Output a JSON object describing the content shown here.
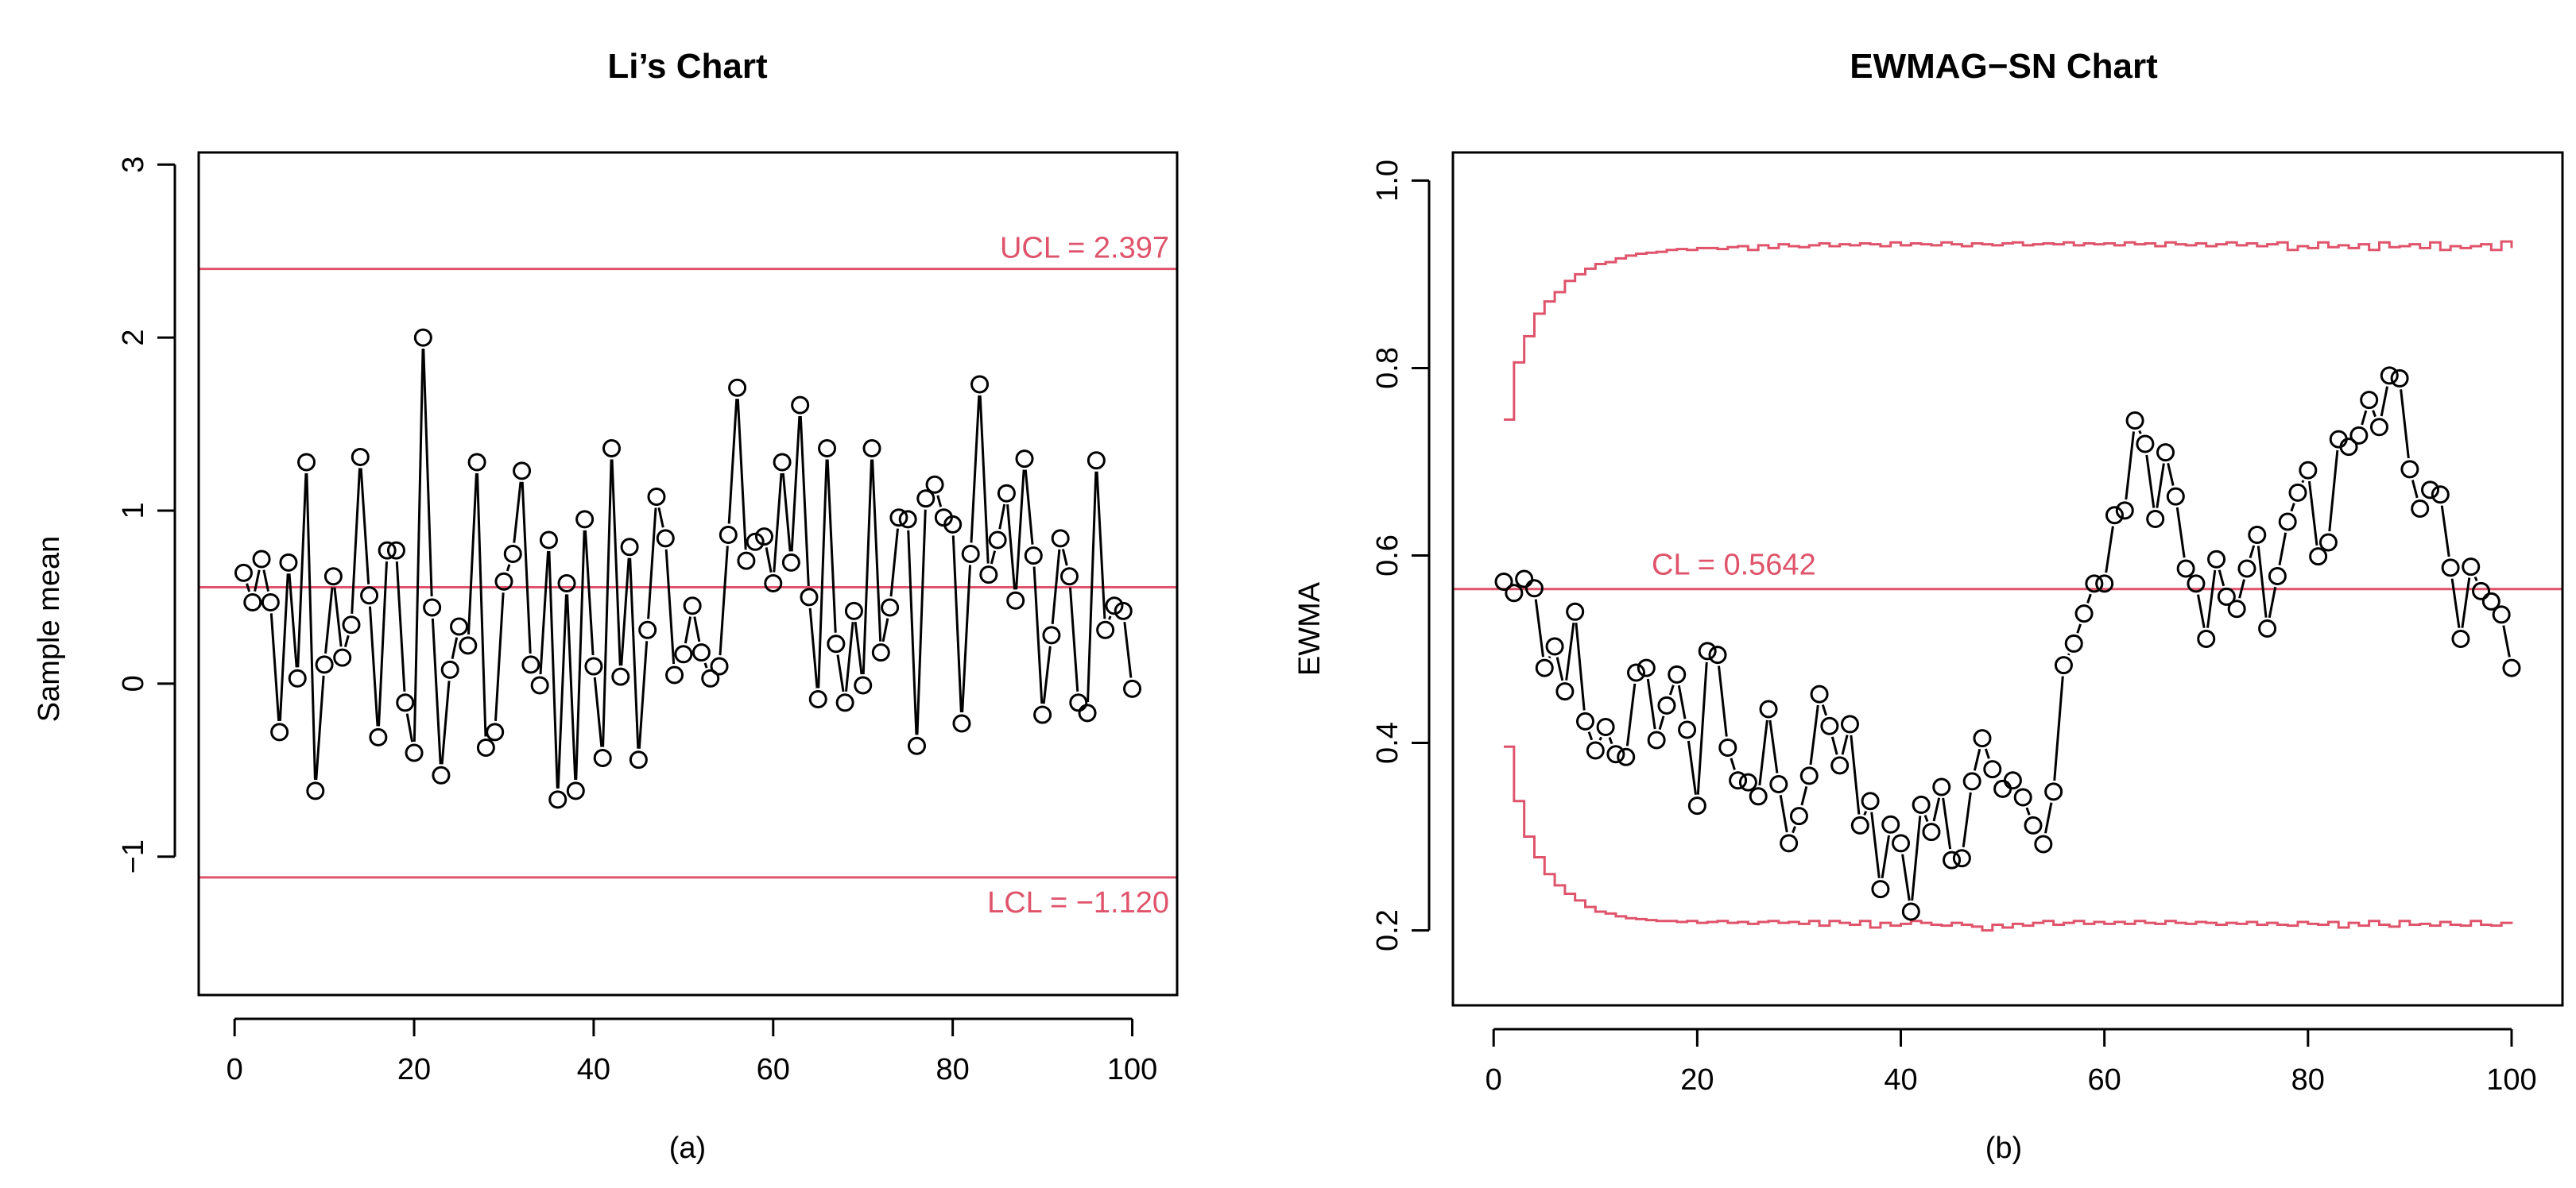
{
  "colors": {
    "limit": "#DF536B",
    "series": "#000000"
  },
  "chart_data": [
    {
      "type": "line",
      "title": "Li’s Chart",
      "caption": "(a)",
      "xlabel": "",
      "ylabel": "Sample mean",
      "xlim": [
        -4,
        105
      ],
      "ylim": [
        -1.8,
        3.07
      ],
      "xticks": [
        0,
        20,
        40,
        60,
        80,
        100
      ],
      "yticks": [
        -1,
        0,
        1,
        2,
        3
      ],
      "marker": "open-circle",
      "limits": [
        {
          "name": "UCL",
          "value": 2.397,
          "label": "UCL = 2.397",
          "label_align": "right-above"
        },
        {
          "name": "CL",
          "value": 0.557,
          "label": "",
          "label_align": ""
        },
        {
          "name": "LCL",
          "value": -1.12,
          "label": "LCL = −1.120",
          "label_align": "right-below"
        }
      ],
      "x": [
        1,
        2,
        3,
        4,
        5,
        6,
        7,
        8,
        9,
        10,
        11,
        12,
        13,
        14,
        15,
        16,
        17,
        18,
        19,
        20,
        21,
        22,
        23,
        24,
        25,
        26,
        27,
        28,
        29,
        30,
        31,
        32,
        33,
        34,
        35,
        36,
        37,
        38,
        39,
        40,
        41,
        42,
        43,
        44,
        45,
        46,
        47,
        48,
        49,
        50,
        51,
        52,
        53,
        54,
        55,
        56,
        57,
        58,
        59,
        60,
        61,
        62,
        63,
        64,
        65,
        66,
        67,
        68,
        69,
        70,
        71,
        72,
        73,
        74,
        75,
        76,
        77,
        78,
        79,
        80,
        81,
        82,
        83,
        84,
        85,
        86,
        87,
        88,
        89,
        90,
        91,
        92,
        93,
        94,
        95,
        96,
        97,
        98,
        99,
        100
      ],
      "values": [
        0.64,
        0.47,
        0.72,
        0.47,
        -0.28,
        0.7,
        0.03,
        1.28,
        -0.62,
        0.11,
        0.62,
        0.15,
        0.34,
        1.31,
        0.51,
        -0.31,
        0.77,
        0.77,
        -0.11,
        -0.4,
        2.0,
        0.44,
        -0.53,
        0.08,
        0.33,
        0.22,
        1.28,
        -0.37,
        -0.28,
        0.59,
        0.75,
        1.23,
        0.11,
        -0.01,
        0.83,
        -0.67,
        0.58,
        -0.62,
        0.95,
        0.1,
        -0.43,
        1.36,
        0.04,
        0.79,
        -0.44,
        0.31,
        1.08,
        0.84,
        0.05,
        0.17,
        0.45,
        0.18,
        0.03,
        0.1,
        0.86,
        1.71,
        0.71,
        0.82,
        0.85,
        0.58,
        1.28,
        0.7,
        1.61,
        0.5,
        -0.09,
        1.36,
        0.23,
        -0.11,
        0.42,
        -0.01,
        1.36,
        0.18,
        0.44,
        0.96,
        0.95,
        -0.36,
        1.07,
        1.15,
        0.96,
        0.92,
        -0.23,
        0.75,
        1.73,
        0.63,
        0.83,
        1.1,
        0.48,
        1.3,
        0.74,
        -0.18,
        0.28,
        0.84,
        0.62,
        -0.11,
        -0.17,
        1.29,
        0.31,
        0.45,
        0.42,
        -0.03
      ]
    },
    {
      "type": "line",
      "title": "EWMAG−SN Chart",
      "caption": "(b)",
      "xlabel": "",
      "ylabel": "EWMA",
      "xlim": [
        -4,
        105
      ],
      "ylim": [
        0.12,
        1.03
      ],
      "xticks": [
        0,
        20,
        40,
        60,
        80,
        100
      ],
      "yticks": [
        0.2,
        0.4,
        0.6,
        0.8,
        1.0
      ],
      "ytick_labels": [
        "0.2",
        "0.4",
        "0.6",
        "0.8",
        "1.0"
      ],
      "marker": "open-circle",
      "limits": [
        {
          "name": "CL",
          "value": 0.5642,
          "label": "CL = 0.5642",
          "label_align": "left-above"
        }
      ],
      "limit_steps": {
        "ucl": [
          0.745,
          0.806,
          0.834,
          0.858,
          0.871,
          0.881,
          0.893,
          0.9,
          0.906,
          0.911,
          0.913,
          0.917,
          0.92,
          0.922,
          0.923,
          0.924,
          0.926,
          0.927,
          0.926,
          0.928,
          0.928,
          0.927,
          0.929,
          0.93,
          0.926,
          0.931,
          0.928,
          0.932,
          0.93,
          0.929,
          0.931,
          0.933,
          0.93,
          0.932,
          0.931,
          0.933,
          0.932,
          0.93,
          0.934,
          0.931,
          0.933,
          0.932,
          0.931,
          0.934,
          0.932,
          0.93,
          0.933,
          0.932,
          0.931,
          0.933,
          0.934,
          0.931,
          0.932,
          0.933,
          0.932,
          0.934,
          0.931,
          0.933,
          0.932,
          0.933,
          0.931,
          0.934,
          0.932,
          0.933,
          0.93,
          0.934,
          0.932,
          0.931,
          0.933,
          0.93,
          0.932,
          0.934,
          0.931,
          0.933,
          0.93,
          0.932,
          0.934,
          0.926,
          0.93,
          0.928,
          0.934,
          0.929,
          0.931,
          0.928,
          0.932,
          0.926,
          0.934,
          0.929,
          0.93,
          0.932,
          0.928,
          0.934,
          0.926,
          0.93,
          0.928,
          0.93,
          0.932,
          0.926,
          0.935,
          0.928
        ],
        "lcl": [
          0.396,
          0.338,
          0.3,
          0.278,
          0.26,
          0.248,
          0.239,
          0.232,
          0.225,
          0.22,
          0.218,
          0.215,
          0.213,
          0.212,
          0.211,
          0.21,
          0.21,
          0.209,
          0.21,
          0.208,
          0.209,
          0.21,
          0.208,
          0.209,
          0.207,
          0.209,
          0.21,
          0.208,
          0.209,
          0.207,
          0.21,
          0.205,
          0.21,
          0.208,
          0.206,
          0.21,
          0.203,
          0.208,
          0.205,
          0.207,
          0.21,
          0.208,
          0.206,
          0.205,
          0.208,
          0.206,
          0.204,
          0.2,
          0.206,
          0.203,
          0.207,
          0.205,
          0.208,
          0.21,
          0.206,
          0.208,
          0.21,
          0.207,
          0.209,
          0.207,
          0.209,
          0.207,
          0.21,
          0.208,
          0.207,
          0.21,
          0.208,
          0.207,
          0.209,
          0.208,
          0.206,
          0.208,
          0.207,
          0.209,
          0.206,
          0.208,
          0.206,
          0.205,
          0.209,
          0.207,
          0.206,
          0.209,
          0.203,
          0.208,
          0.205,
          0.21,
          0.206,
          0.204,
          0.21,
          0.206,
          0.207,
          0.205,
          0.209,
          0.206,
          0.205,
          0.21,
          0.206,
          0.205,
          0.208,
          0.207
        ]
      },
      "x": [
        1,
        2,
        3,
        4,
        5,
        6,
        7,
        8,
        9,
        10,
        11,
        12,
        13,
        14,
        15,
        16,
        17,
        18,
        19,
        20,
        21,
        22,
        23,
        24,
        25,
        26,
        27,
        28,
        29,
        30,
        31,
        32,
        33,
        34,
        35,
        36,
        37,
        38,
        39,
        40,
        41,
        42,
        43,
        44,
        45,
        46,
        47,
        48,
        49,
        50,
        51,
        52,
        53,
        54,
        55,
        56,
        57,
        58,
        59,
        60,
        61,
        62,
        63,
        64,
        65,
        66,
        67,
        68,
        69,
        70,
        71,
        72,
        73,
        74,
        75,
        76,
        77,
        78,
        79,
        80,
        81,
        82,
        83,
        84,
        85,
        86,
        87,
        88,
        89,
        90,
        91,
        92,
        93,
        94,
        95,
        96,
        97,
        98,
        99,
        100
      ],
      "values": [
        0.572,
        0.56,
        0.575,
        0.565,
        0.48,
        0.503,
        0.455,
        0.54,
        0.423,
        0.392,
        0.417,
        0.388,
        0.385,
        0.475,
        0.48,
        0.403,
        0.44,
        0.473,
        0.414,
        0.333,
        0.498,
        0.494,
        0.395,
        0.36,
        0.358,
        0.343,
        0.436,
        0.356,
        0.293,
        0.322,
        0.365,
        0.452,
        0.418,
        0.376,
        0.42,
        0.312,
        0.338,
        0.244,
        0.313,
        0.293,
        0.22,
        0.334,
        0.305,
        0.353,
        0.275,
        0.277,
        0.359,
        0.405,
        0.372,
        0.351,
        0.36,
        0.342,
        0.312,
        0.292,
        0.348,
        0.483,
        0.506,
        0.538,
        0.57,
        0.57,
        0.643,
        0.648,
        0.744,
        0.719,
        0.639,
        0.71,
        0.663,
        0.586,
        0.57,
        0.511,
        0.596,
        0.556,
        0.543,
        0.586,
        0.622,
        0.522,
        0.578,
        0.636,
        0.667,
        0.691,
        0.599,
        0.614,
        0.724,
        0.716,
        0.728,
        0.766,
        0.737,
        0.792,
        0.789,
        0.692,
        0.65,
        0.67,
        0.665,
        0.587,
        0.511,
        0.588,
        0.562,
        0.551,
        0.537,
        0.48
      ]
    }
  ]
}
